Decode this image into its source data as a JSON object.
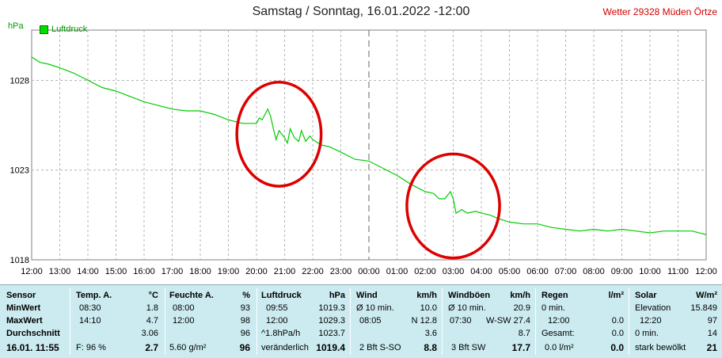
{
  "chart_data": {
    "type": "line",
    "title": "Samstag / Sonntag, 16.01.2022  -12:00",
    "ylabel": "hPa",
    "ylim": [
      1018,
      1030.8
    ],
    "yticks": [
      "1018",
      "1023",
      "1028"
    ],
    "x_ticks": [
      "12:00",
      "13:00",
      "14:00",
      "15:00",
      "16:00",
      "17:00",
      "18:00",
      "19:00",
      "20:00",
      "21:00",
      "22:00",
      "23:00",
      "00:00",
      "01:00",
      "02:00",
      "03:00",
      "04:00",
      "05:00",
      "06:00",
      "07:00",
      "08:00",
      "09:00",
      "10:00",
      "11:00",
      "12:00"
    ],
    "grid": true,
    "series": [
      {
        "name": "Luftdruck",
        "color": "#00cc00",
        "points": [
          [
            0,
            1029.3
          ],
          [
            0.3,
            1029.0
          ],
          [
            0.6,
            1028.9
          ],
          [
            1.0,
            1028.7
          ],
          [
            1.5,
            1028.4
          ],
          [
            2.0,
            1028.0
          ],
          [
            2.5,
            1027.6
          ],
          [
            3.0,
            1027.4
          ],
          [
            3.5,
            1027.1
          ],
          [
            4.0,
            1026.8
          ],
          [
            4.5,
            1026.6
          ],
          [
            5.0,
            1026.4
          ],
          [
            5.5,
            1026.3
          ],
          [
            6.0,
            1026.3
          ],
          [
            6.5,
            1026.1
          ],
          [
            7.0,
            1025.8
          ],
          [
            7.5,
            1025.6
          ],
          [
            8.0,
            1025.6
          ],
          [
            8.1,
            1025.9
          ],
          [
            8.2,
            1025.8
          ],
          [
            8.3,
            1026.1
          ],
          [
            8.4,
            1026.4
          ],
          [
            8.5,
            1026.0
          ],
          [
            8.6,
            1025.3
          ],
          [
            8.7,
            1024.7
          ],
          [
            8.8,
            1025.2
          ],
          [
            8.9,
            1025.0
          ],
          [
            9.0,
            1024.8
          ],
          [
            9.1,
            1024.5
          ],
          [
            9.2,
            1025.3
          ],
          [
            9.35,
            1024.8
          ],
          [
            9.5,
            1024.6
          ],
          [
            9.6,
            1025.2
          ],
          [
            9.75,
            1024.6
          ],
          [
            9.9,
            1024.9
          ],
          [
            10.0,
            1024.7
          ],
          [
            10.3,
            1024.4
          ],
          [
            10.6,
            1024.3
          ],
          [
            11.0,
            1024.0
          ],
          [
            11.5,
            1023.6
          ],
          [
            12.0,
            1023.5
          ],
          [
            12.5,
            1023.1
          ],
          [
            13.0,
            1022.7
          ],
          [
            13.5,
            1022.2
          ],
          [
            14.0,
            1021.8
          ],
          [
            14.3,
            1021.7
          ],
          [
            14.5,
            1021.4
          ],
          [
            14.7,
            1021.4
          ],
          [
            14.9,
            1021.8
          ],
          [
            15.0,
            1021.4
          ],
          [
            15.1,
            1020.6
          ],
          [
            15.3,
            1020.8
          ],
          [
            15.5,
            1020.6
          ],
          [
            15.8,
            1020.7
          ],
          [
            16.0,
            1020.6
          ],
          [
            16.3,
            1020.5
          ],
          [
            16.6,
            1020.3
          ],
          [
            17.0,
            1020.1
          ],
          [
            17.5,
            1020.0
          ],
          [
            18.0,
            1020.0
          ],
          [
            18.5,
            1019.8
          ],
          [
            19.0,
            1019.7
          ],
          [
            19.5,
            1019.6
          ],
          [
            20.0,
            1019.7
          ],
          [
            20.5,
            1019.6
          ],
          [
            21.0,
            1019.7
          ],
          [
            21.5,
            1019.6
          ],
          [
            22.0,
            1019.5
          ],
          [
            22.5,
            1019.6
          ],
          [
            23.0,
            1019.6
          ],
          [
            23.5,
            1019.6
          ],
          [
            24.0,
            1019.4
          ]
        ]
      }
    ],
    "annotations": [
      {
        "type": "ellipse",
        "cx_hour": 8.8,
        "cy_value": 1025.0,
        "rx_hours": 1.5,
        "ry_hpa": 2.9,
        "color": "#dd0000"
      },
      {
        "type": "ellipse",
        "cx_hour": 15.0,
        "cy_value": 1021.0,
        "rx_hours": 1.65,
        "ry_hpa": 2.9,
        "color": "#dd0000"
      }
    ],
    "divider_hour": 12
  },
  "header": {
    "unit": "hPa",
    "legend": "Luftdruck",
    "station": "Wetter 29328 Müden Örtze"
  },
  "table": {
    "sensor": {
      "h": "Sensor",
      "r1": "MinWert",
      "r2": "MaxWert",
      "r3": "Durchschnitt",
      "r4": "16.01. 11:55"
    },
    "temp": {
      "h": "Temp. A.",
      "u": "°C",
      "r1a": "08:30",
      "r1b": "1.8",
      "r2a": "14:10",
      "r2b": "4.7",
      "r3b": "3.06",
      "r4a": "F: 96 %",
      "r4b": "2.7"
    },
    "hum": {
      "h": "Feuchte A.",
      "u": "%",
      "r1a": "08:00",
      "r1b": "93",
      "r2a": "12:00",
      "r2b": "98",
      "r3b": "96",
      "r4a": "5.60 g/m²",
      "r4b": "96"
    },
    "press": {
      "h": "Luftdruck",
      "u": "hPa",
      "r1a": "09:55",
      "r1b": "1019.3",
      "r2a": "12:00",
      "r2b": "1029.3",
      "r3a": "^1.8hPa/h",
      "r3b": "1023.7",
      "r4a": "veränderlich",
      "r4b": "1019.4"
    },
    "wind": {
      "h": "Wind",
      "u": "km/h",
      "r1a": "Ø 10 min.",
      "r1b": "10.0",
      "r2a": "08:05",
      "r2b": "N 12.8",
      "r3b": "3.6",
      "r4a": "2 Bft S-SO",
      "r4b": "8.8"
    },
    "gust": {
      "h": "Windböen",
      "u": "km/h",
      "r1a": "Ø 10 min.",
      "r1b": "20.9",
      "r2a": "07:30",
      "r2b": "W-SW 27.4",
      "r3b": "8.7",
      "r4a": "3 Bft SW",
      "r4b": "17.7"
    },
    "rain": {
      "h": "Regen",
      "u": "l/m²",
      "r1a": "0 min.",
      "r2a": "12:00",
      "r2b": "0.0",
      "r3a": "Gesamt:",
      "r3b": "0.0",
      "r4a": "0.0 l/m²",
      "r4b": "0.0"
    },
    "solar": {
      "h": "Solar",
      "u": "W/m²",
      "r1a": "Elevation",
      "r1b": "15.849",
      "r2a": "12:20",
      "r2b": "97",
      "r3a": "0 min.",
      "r3b": "14",
      "r4a": "stark bewölkt",
      "r4b": "21"
    }
  }
}
